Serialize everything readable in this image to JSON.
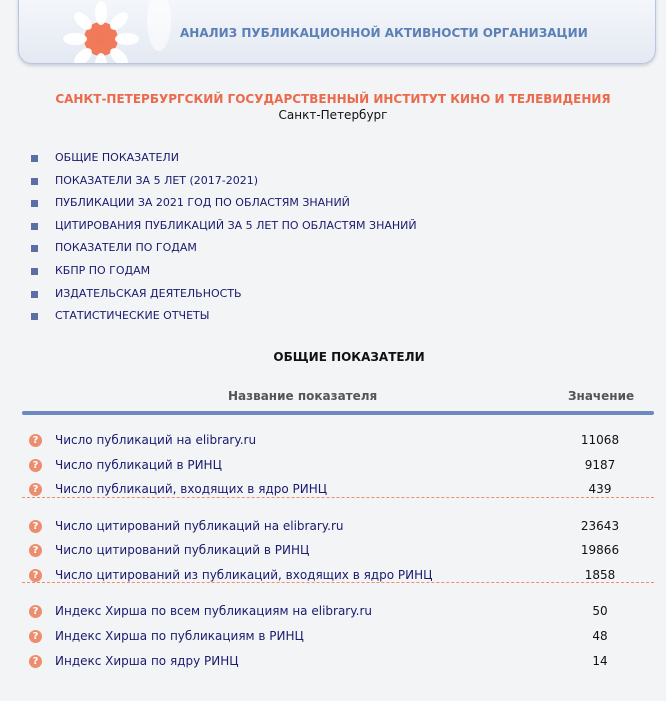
{
  "header": {
    "title": "АНАЛИЗ ПУБЛИКАЦИОННОЙ АКТИВНОСТИ ОРГАНИЗАЦИИ"
  },
  "organization": {
    "name": "САНКТ-ПЕТЕРБУРГСКИЙ ГОСУДАРСТВЕННЫЙ ИНСТИТУТ КИНО И ТЕЛЕВИДЕНИЯ",
    "city": "Санкт-Петербург"
  },
  "menu": [
    "ОБЩИЕ ПОКАЗАТЕЛИ",
    "ПОКАЗАТЕЛИ ЗА 5 ЛЕТ (2017-2021)",
    "ПУБЛИКАЦИИ ЗА 2021 ГОД ПО ОБЛАСТЯМ ЗНАНИЙ",
    "ЦИТИРОВАНИЯ ПУБЛИКАЦИЙ ЗА 5 ЛЕТ ПО ОБЛАСТЯМ ЗНАНИЙ",
    "ПОКАЗАТЕЛИ ПО ГОДАМ",
    "КБПР ПО ГОДАМ",
    "ИЗДАТЕЛЬСКАЯ ДЕЯТЕЛЬНОСТЬ",
    "СТАТИСТИЧЕСКИЕ ОТЧЕТЫ"
  ],
  "section": {
    "title": "ОБЩИЕ ПОКАЗАТЕЛИ"
  },
  "table": {
    "columns": [
      "Название показателя",
      "Значение"
    ],
    "groups": [
      [
        [
          "Число публикаций на elibrary.ru",
          11068
        ],
        [
          "Число публикаций в РИНЦ",
          9187
        ],
        [
          "Число публикаций, входящих в ядро РИНЦ",
          439
        ]
      ],
      [
        [
          "Число цитирований публикаций на elibrary.ru",
          23643
        ],
        [
          "Число цитирований публикаций в РИНЦ",
          19866
        ],
        [
          "Число цитирований из публикаций, входящих в ядро РИНЦ",
          1858
        ]
      ],
      [
        [
          "Индекс Хирша по всем публикациям на elibrary.ru",
          50
        ],
        [
          "Индекс Хирша по публикациям в РИНЦ",
          48
        ],
        [
          "Индекс Хирша по ядру РИНЦ",
          14
        ]
      ]
    ]
  }
}
